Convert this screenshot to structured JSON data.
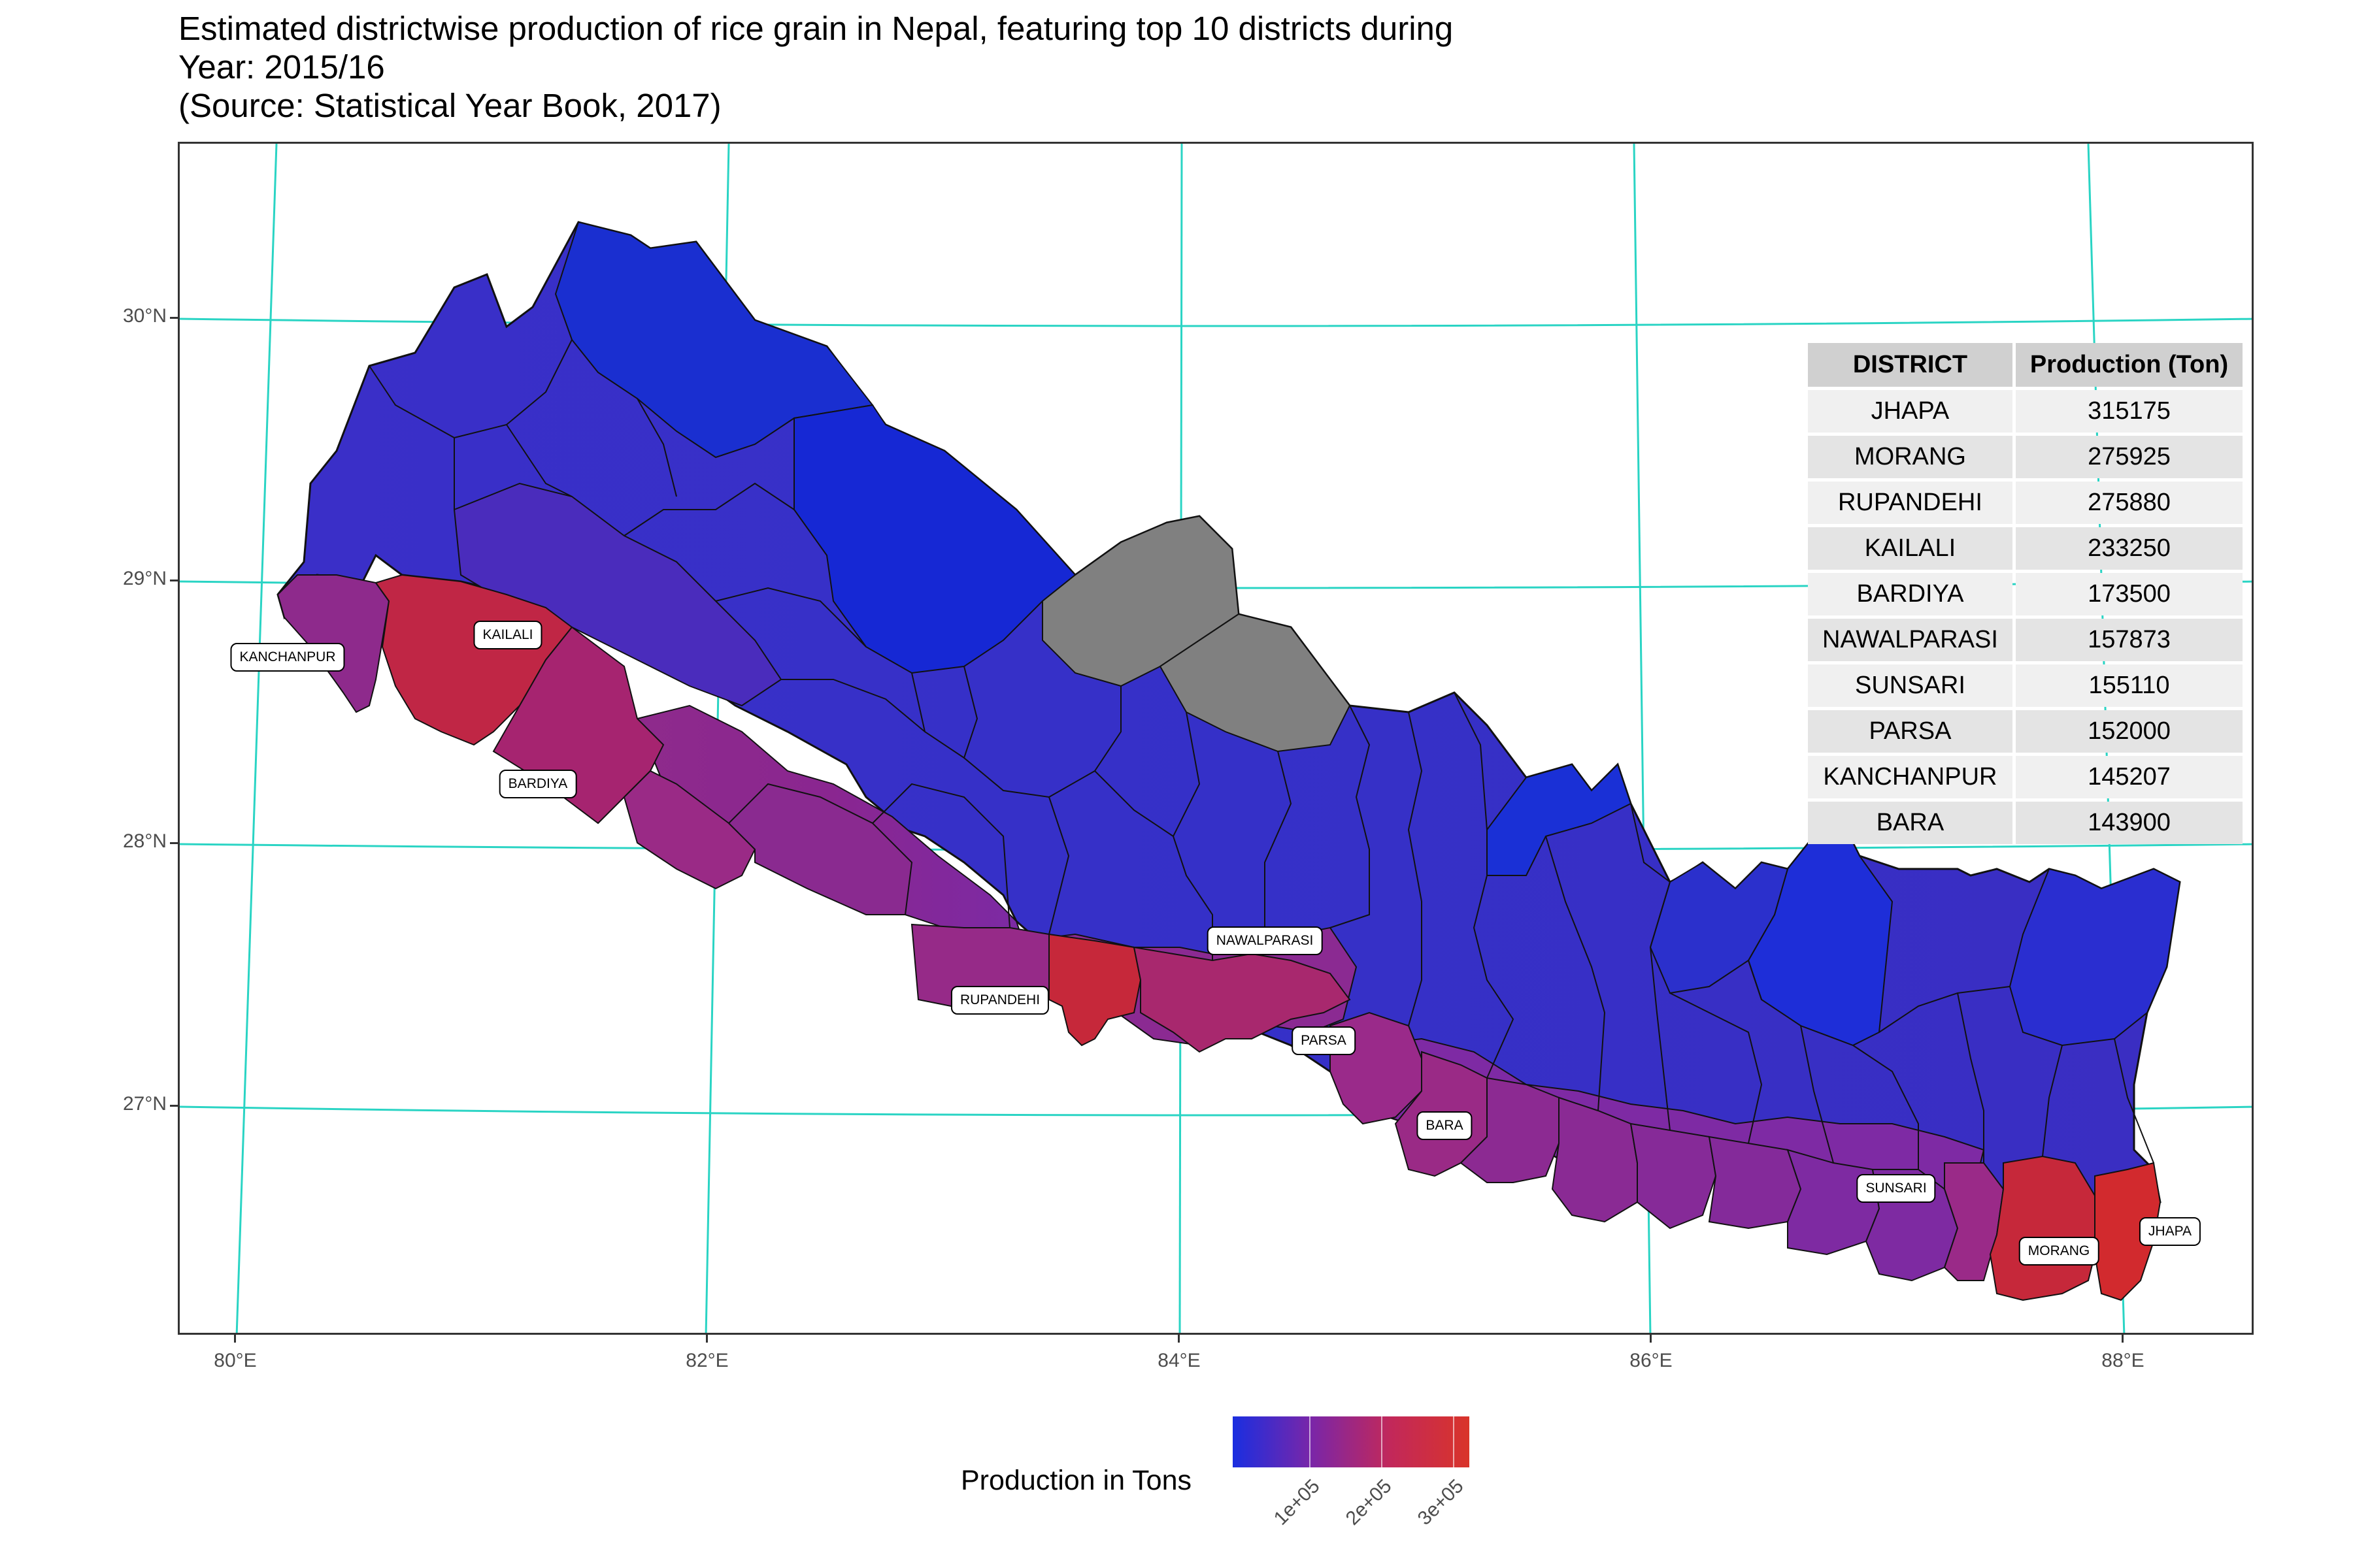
{
  "title": {
    "line1": "Estimated districtwise production of rice grain in Nepal, featuring top 10 districts during",
    "line2": "Year: 2015/16",
    "line3": "(Source: Statistical Year Book, 2017)"
  },
  "axes": {
    "lat_ticks": [
      "30°N",
      "29°N",
      "28°N",
      "27°N"
    ],
    "lon_ticks": [
      "80°E",
      "82°E",
      "84°E",
      "86°E",
      "88°E"
    ]
  },
  "colors": {
    "graticule": "#2ad4c4",
    "low": "#1a2ee0",
    "mid": "#7a26a8",
    "high": "#d9342a",
    "missing": "#808080"
  },
  "table": {
    "headers": [
      "DISTRICT",
      "Production (Ton)"
    ],
    "rows": [
      [
        "JHAPA",
        "315175"
      ],
      [
        "MORANG",
        "275925"
      ],
      [
        "RUPANDEHI",
        "275880"
      ],
      [
        "KAILALI",
        "233250"
      ],
      [
        "BARDIYA",
        "173500"
      ],
      [
        "NAWALPARASI",
        "157873"
      ],
      [
        "SUNSARI",
        "155110"
      ],
      [
        "PARSA",
        "152000"
      ],
      [
        "KANCHANPUR",
        "145207"
      ],
      [
        "BARA",
        "143900"
      ]
    ]
  },
  "district_labels": [
    "KANCHANPUR",
    "KAILALI",
    "BARDIYA",
    "RUPANDEHI",
    "NAWALPARASI",
    "PARSA",
    "BARA",
    "SUNSARI",
    "MORANG",
    "JHAPA"
  ],
  "legend": {
    "title": "Production in Tons",
    "ticks": [
      "1e+05",
      "2e+05",
      "3e+05"
    ]
  }
}
